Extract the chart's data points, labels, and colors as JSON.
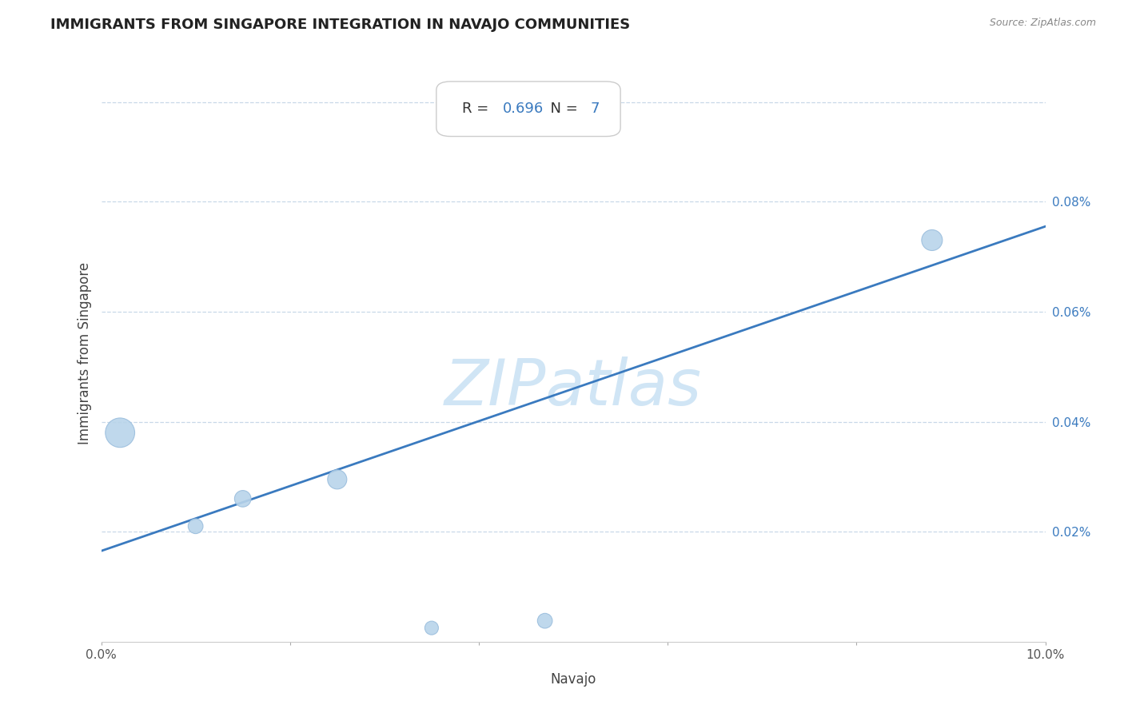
{
  "title": "IMMIGRANTS FROM SINGAPORE INTEGRATION IN NAVAJO COMMUNITIES",
  "source": "Source: ZipAtlas.com",
  "xlabel": "Navajo",
  "ylabel": "Immigrants from Singapore",
  "R": 0.696,
  "N": 7,
  "xlim": [
    0.0,
    0.1
  ],
  "ylim": [
    0.0,
    0.00105
  ],
  "xticks": [
    0.0,
    0.02,
    0.04,
    0.06,
    0.08,
    0.1
  ],
  "xtick_labels_show": [
    "0.0%",
    "",
    "",
    "",
    "",
    "10.0%"
  ],
  "ytick_positions": [
    0.0002,
    0.0004,
    0.0006,
    0.0008
  ],
  "ytick_labels": [
    "0.02%",
    "0.04%",
    "0.06%",
    "0.08%"
  ],
  "scatter_x": [
    0.002,
    0.01,
    0.015,
    0.025,
    0.035,
    0.088,
    0.047
  ],
  "scatter_y": [
    0.00038,
    0.00021,
    0.00026,
    0.000295,
    2.5e-05,
    0.00073,
    3.8e-05
  ],
  "scatter_sizes": [
    700,
    180,
    220,
    300,
    150,
    350,
    180
  ],
  "line_x": [
    0.0,
    0.1
  ],
  "line_y": [
    0.000165,
    0.000755
  ],
  "scatter_color": "#b8d4ea",
  "scatter_edge_color": "#9bbedd",
  "line_color": "#3a7abf",
  "grid_color": "#c8d8e8",
  "background_color": "#ffffff",
  "title_color": "#222222",
  "title_fontsize": 13,
  "axis_label_color": "#444444",
  "watermark_text": "ZIPatlas",
  "watermark_color": "#d0e5f5",
  "watermark_fontsize": 58,
  "ytick_color": "#3a7abf",
  "xtick_color": "#555555",
  "box_text_color": "#333333",
  "r_value_color": "#3a7abf",
  "n_value_color": "#3a7abf"
}
